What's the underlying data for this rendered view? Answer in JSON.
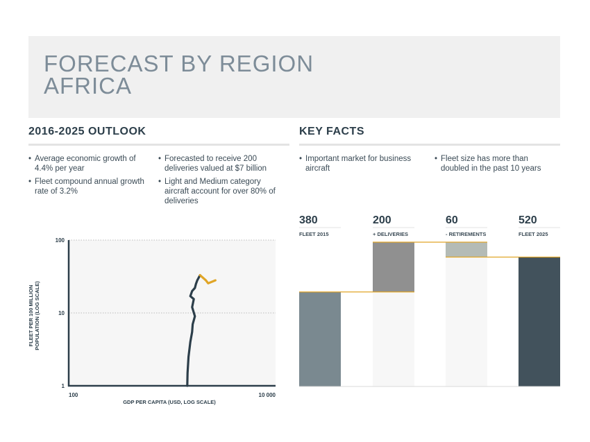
{
  "header": {
    "title_line1": "FORECAST BY REGION",
    "title_line2": "AFRICA"
  },
  "outlook": {
    "heading": "2016-2025 OUTLOOK",
    "col1": [
      "Average economic growth of 4.4% per year",
      "Fleet compound annual growth rate of 3.2%"
    ],
    "col2": [
      "Forecasted to receive 200 deliveries valued at $7 billion",
      "Light and Medium category aircraft account for over 80% of deliveries"
    ]
  },
  "key_facts": {
    "heading": "KEY FACTS",
    "col1": [
      "Important market for business aircraft"
    ],
    "col2": [
      "Fleet size has more than doubled in the past 10 years"
    ]
  },
  "colors": {
    "dark": "#2c3e4a",
    "accent": "#e0a526",
    "gray_bar": "#7a8990",
    "mid_bar": "#909090",
    "light_bar": "#b4bbb6",
    "dark_bar": "#42525c",
    "panel": "#f6f6f6"
  },
  "chart_data": [
    {
      "type": "line",
      "xlabel": "GDP PER CAPITA (USD, LOG SCALE)",
      "ylabel": "FLEET PER 100 MILLION POPULATION (LOG SCALE)",
      "x_scale": "log",
      "y_scale": "log",
      "xlim": [
        100,
        10000
      ],
      "ylim": [
        1,
        100
      ],
      "x_ticks": [
        "100",
        "10 000"
      ],
      "y_ticks": [
        "1",
        "10",
        "100"
      ],
      "grid": "dotted horizontal at 10 and 100",
      "series": [
        {
          "role": "historical",
          "color": "#2c3e4a",
          "points": [
            [
              1400,
              1
            ],
            [
              1410,
              1.5
            ],
            [
              1440,
              2.5
            ],
            [
              1500,
              4
            ],
            [
              1560,
              5.5
            ],
            [
              1580,
              7
            ],
            [
              1660,
              9
            ],
            [
              1560,
              12
            ],
            [
              1620,
              15.5
            ],
            [
              1500,
              17
            ],
            [
              1560,
              20
            ],
            [
              1660,
              22
            ],
            [
              1700,
              25
            ],
            [
              1750,
              28
            ],
            [
              1860,
              33
            ]
          ]
        },
        {
          "role": "forecast",
          "color": "#e0a526",
          "points": [
            [
              1860,
              33
            ],
            [
              2120,
              28
            ],
            [
              2230,
              25.5
            ],
            [
              2620,
              28
            ]
          ]
        }
      ]
    },
    {
      "type": "bar",
      "subtype": "waterfall",
      "categories": [
        "FLEET 2015",
        "+ DELIVERIES",
        "- RETIREMENTS",
        "FLEET 2025"
      ],
      "values": [
        380,
        200,
        60,
        520
      ],
      "labels": [
        "380",
        "200",
        "60",
        "520"
      ],
      "ylim": [
        0,
        580
      ]
    }
  ]
}
